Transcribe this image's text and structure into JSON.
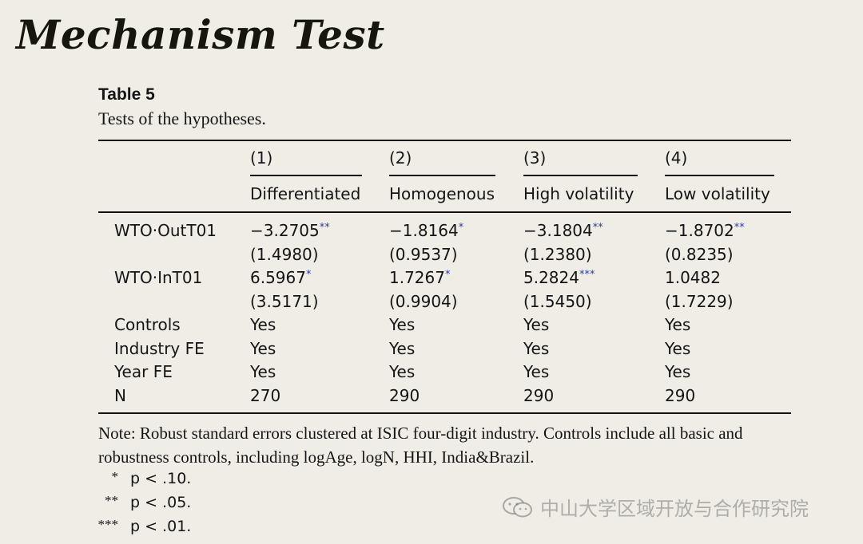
{
  "title": "Mechanism Test",
  "table": {
    "label": "Table 5",
    "caption": "Tests of the hypotheses.",
    "columns": [
      {
        "num": "(1)",
        "name": "Differentiated"
      },
      {
        "num": "(2)",
        "name": "Homogenous"
      },
      {
        "num": "(3)",
        "name": "High volatility"
      },
      {
        "num": "(4)",
        "name": "Low volatility"
      }
    ],
    "rows": [
      {
        "label": "WTO·OutT01",
        "cells": [
          {
            "value": "−3.2705",
            "sig": "**"
          },
          {
            "value": "−1.8164",
            "sig": "*"
          },
          {
            "value": "−3.1804",
            "sig": "**"
          },
          {
            "value": "−1.8702",
            "sig": "**"
          }
        ]
      },
      {
        "label": "",
        "cells": [
          {
            "value": "(1.4980)",
            "sig": ""
          },
          {
            "value": "(0.9537)",
            "sig": ""
          },
          {
            "value": "(1.2380)",
            "sig": ""
          },
          {
            "value": "(0.8235)",
            "sig": ""
          }
        ]
      },
      {
        "label": "WTO·InT01",
        "cells": [
          {
            "value": "6.5967",
            "sig": "*"
          },
          {
            "value": "1.7267",
            "sig": "*"
          },
          {
            "value": "5.2824",
            "sig": "***"
          },
          {
            "value": "1.0482",
            "sig": ""
          }
        ]
      },
      {
        "label": "",
        "cells": [
          {
            "value": "(3.5171)",
            "sig": ""
          },
          {
            "value": "(0.9904)",
            "sig": ""
          },
          {
            "value": "(1.5450)",
            "sig": ""
          },
          {
            "value": "(1.7229)",
            "sig": ""
          }
        ]
      },
      {
        "label": "Controls",
        "cells": [
          {
            "value": "Yes",
            "sig": ""
          },
          {
            "value": "Yes",
            "sig": ""
          },
          {
            "value": "Yes",
            "sig": ""
          },
          {
            "value": "Yes",
            "sig": ""
          }
        ]
      },
      {
        "label": "Industry FE",
        "cells": [
          {
            "value": "Yes",
            "sig": ""
          },
          {
            "value": "Yes",
            "sig": ""
          },
          {
            "value": "Yes",
            "sig": ""
          },
          {
            "value": "Yes",
            "sig": ""
          }
        ]
      },
      {
        "label": "Year FE",
        "cells": [
          {
            "value": "Yes",
            "sig": ""
          },
          {
            "value": "Yes",
            "sig": ""
          },
          {
            "value": "Yes",
            "sig": ""
          },
          {
            "value": "Yes",
            "sig": ""
          }
        ]
      },
      {
        "label": "N",
        "cells": [
          {
            "value": "270",
            "sig": ""
          },
          {
            "value": "290",
            "sig": ""
          },
          {
            "value": "290",
            "sig": ""
          },
          {
            "value": "290",
            "sig": ""
          }
        ]
      }
    ],
    "note": "Note: Robust standard errors clustered at ISIC four-digit industry. Controls include all basic and robustness controls, including logAge, logN, HHI, India&Brazil.",
    "significance": [
      {
        "mark": "*",
        "text": "p < .10."
      },
      {
        "mark": "**",
        "text": "p < .05."
      },
      {
        "mark": "***",
        "text": "p < .01."
      }
    ]
  },
  "watermark": {
    "text": "中山大学区域开放与合作研究院",
    "icon": "wechat-icon"
  },
  "colors": {
    "background": "#efede6",
    "significance_stars": "#2a3f9e"
  }
}
